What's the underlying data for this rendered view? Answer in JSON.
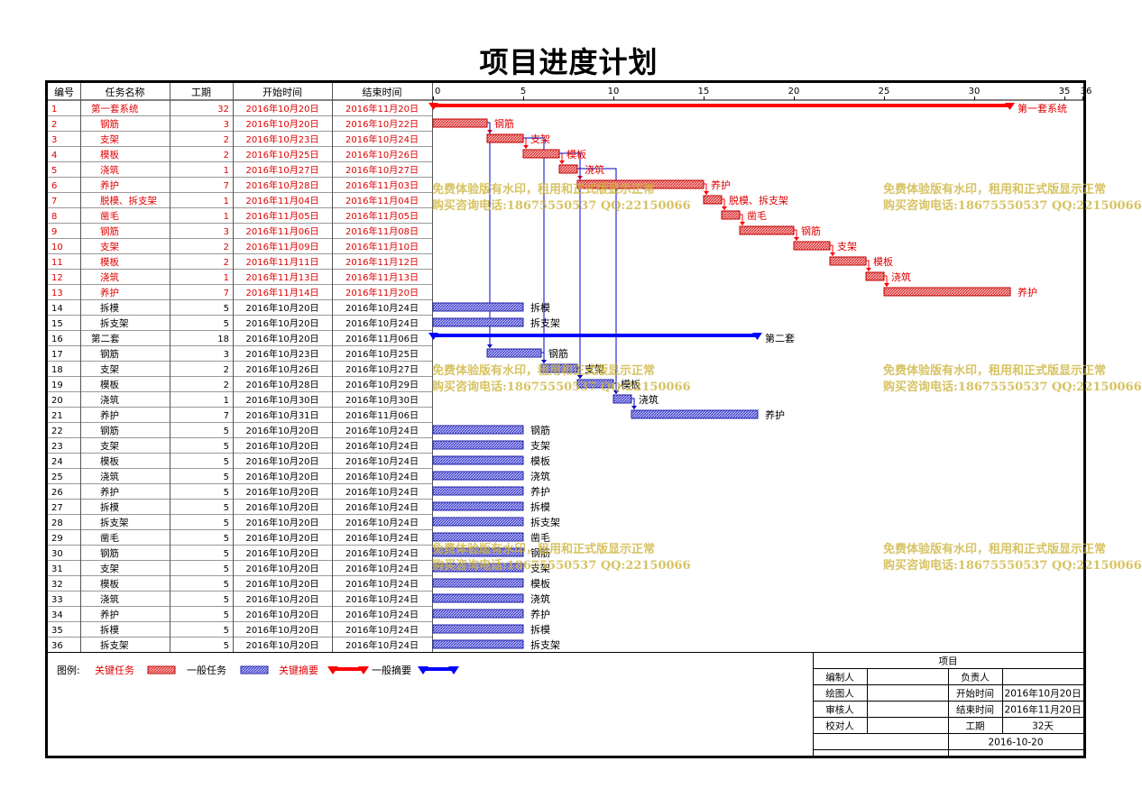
{
  "title": "项目进度计划",
  "headers": {
    "id": "编号",
    "name": "任务名称",
    "duration": "工期",
    "start": "开始时间",
    "end": "结束时间"
  },
  "colors": {
    "critical_text": "#e00000",
    "normal_text": "#000000",
    "critical_bar": "#e03030",
    "normal_bar": "#4a4ad0",
    "critical_summary": "#ff0000",
    "normal_summary": "#0000ff",
    "link": "#0000cc",
    "watermark": "#cdb43c"
  },
  "watermark": {
    "line1": "免费体验版有水印，租用和正式版显示正常",
    "line2": "购买咨询电话:18675550537 QQ:22150066"
  },
  "legend": {
    "label": "图例:",
    "critical_task": "关键任务",
    "normal_task": "一般任务",
    "critical_summary": "关键摘要",
    "normal_summary": "一般摘要"
  },
  "info_block": {
    "heading": "项目",
    "editor_label": "编制人",
    "owner_label": "负责人",
    "drawer_label": "绘图人",
    "start_label": "开始时间",
    "start_value": "2016年10月20日",
    "reviewer_label": "审核人",
    "end_label": "结束时间",
    "end_value": "2016年11月20日",
    "checker_label": "校对人",
    "duration_label": "工期",
    "duration_value": "32天",
    "date": "2016-10-20"
  },
  "chart_data": {
    "type": "gantt",
    "x_ticks": [
      "0",
      "5",
      "10",
      "15",
      "20",
      "25",
      "30",
      "35",
      "36"
    ],
    "x_range": [
      0,
      36
    ],
    "tasks": [
      {
        "id": "1",
        "name": "第一套系统",
        "duration": "32",
        "start": "2016年10月20日",
        "end": "2016年11月20日",
        "day": 0,
        "len": 32,
        "kind": "summary",
        "critical": true,
        "label": "第一套系统"
      },
      {
        "id": "2",
        "name": "钢筋",
        "duration": "3",
        "start": "2016年10月20日",
        "end": "2016年10月22日",
        "day": 0,
        "len": 3,
        "kind": "task",
        "critical": true,
        "label": "钢筋"
      },
      {
        "id": "3",
        "name": "支架",
        "duration": "2",
        "start": "2016年10月23日",
        "end": "2016年10月24日",
        "day": 3,
        "len": 2,
        "kind": "task",
        "critical": true,
        "label": "支架"
      },
      {
        "id": "4",
        "name": "模板",
        "duration": "2",
        "start": "2016年10月25日",
        "end": "2016年10月26日",
        "day": 5,
        "len": 2,
        "kind": "task",
        "critical": true,
        "label": "模板"
      },
      {
        "id": "5",
        "name": "浇筑",
        "duration": "1",
        "start": "2016年10月27日",
        "end": "2016年10月27日",
        "day": 7,
        "len": 1,
        "kind": "task",
        "critical": true,
        "label": "浇筑"
      },
      {
        "id": "6",
        "name": "养护",
        "duration": "7",
        "start": "2016年10月28日",
        "end": "2016年11月03日",
        "day": 8,
        "len": 7,
        "kind": "task",
        "critical": true,
        "label": "养护"
      },
      {
        "id": "7",
        "name": "脱模、拆支架",
        "duration": "1",
        "start": "2016年11月04日",
        "end": "2016年11月04日",
        "day": 15,
        "len": 1,
        "kind": "task",
        "critical": true,
        "label": "脱模、拆支架"
      },
      {
        "id": "8",
        "name": "凿毛",
        "duration": "1",
        "start": "2016年11月05日",
        "end": "2016年11月05日",
        "day": 16,
        "len": 1,
        "kind": "task",
        "critical": true,
        "label": "凿毛"
      },
      {
        "id": "9",
        "name": "钢筋",
        "duration": "3",
        "start": "2016年11月06日",
        "end": "2016年11月08日",
        "day": 17,
        "len": 3,
        "kind": "task",
        "critical": true,
        "label": "钢筋"
      },
      {
        "id": "10",
        "name": "支架",
        "duration": "2",
        "start": "2016年11月09日",
        "end": "2016年11月10日",
        "day": 20,
        "len": 2,
        "kind": "task",
        "critical": true,
        "label": "支架"
      },
      {
        "id": "11",
        "name": "模板",
        "duration": "2",
        "start": "2016年11月11日",
        "end": "2016年11月12日",
        "day": 22,
        "len": 2,
        "kind": "task",
        "critical": true,
        "label": "模板"
      },
      {
        "id": "12",
        "name": "浇筑",
        "duration": "1",
        "start": "2016年11月13日",
        "end": "2016年11月13日",
        "day": 24,
        "len": 1,
        "kind": "task",
        "critical": true,
        "label": "浇筑"
      },
      {
        "id": "13",
        "name": "养护",
        "duration": "7",
        "start": "2016年11月14日",
        "end": "2016年11月20日",
        "day": 25,
        "len": 7,
        "kind": "task",
        "critical": true,
        "label": "养护"
      },
      {
        "id": "14",
        "name": "拆模",
        "duration": "5",
        "start": "2016年10月20日",
        "end": "2016年10月24日",
        "day": 0,
        "len": 5,
        "kind": "task",
        "critical": false,
        "label": "拆模"
      },
      {
        "id": "15",
        "name": "拆支架",
        "duration": "5",
        "start": "2016年10月20日",
        "end": "2016年10月24日",
        "day": 0,
        "len": 5,
        "kind": "task",
        "critical": false,
        "label": "拆支架"
      },
      {
        "id": "16",
        "name": "第二套",
        "duration": "18",
        "start": "2016年10月20日",
        "end": "2016年11月06日",
        "day": 0,
        "len": 18,
        "kind": "summary",
        "critical": false,
        "label": "第二套"
      },
      {
        "id": "17",
        "name": "钢筋",
        "duration": "3",
        "start": "2016年10月23日",
        "end": "2016年10月25日",
        "day": 3,
        "len": 3,
        "kind": "task",
        "critical": false,
        "label": "钢筋"
      },
      {
        "id": "18",
        "name": "支架",
        "duration": "2",
        "start": "2016年10月26日",
        "end": "2016年10月27日",
        "day": 6,
        "len": 2,
        "kind": "task",
        "critical": false,
        "label": "支架"
      },
      {
        "id": "19",
        "name": "模板",
        "duration": "2",
        "start": "2016年10月28日",
        "end": "2016年10月29日",
        "day": 8,
        "len": 2,
        "kind": "task",
        "critical": false,
        "label": "模板"
      },
      {
        "id": "20",
        "name": "浇筑",
        "duration": "1",
        "start": "2016年10月30日",
        "end": "2016年10月30日",
        "day": 10,
        "len": 1,
        "kind": "task",
        "critical": false,
        "label": "浇筑"
      },
      {
        "id": "21",
        "name": "养护",
        "duration": "7",
        "start": "2016年10月31日",
        "end": "2016年11月06日",
        "day": 11,
        "len": 7,
        "kind": "task",
        "critical": false,
        "label": "养护"
      },
      {
        "id": "22",
        "name": "钢筋",
        "duration": "5",
        "start": "2016年10月20日",
        "end": "2016年10月24日",
        "day": 0,
        "len": 5,
        "kind": "task",
        "critical": false,
        "label": "钢筋"
      },
      {
        "id": "23",
        "name": "支架",
        "duration": "5",
        "start": "2016年10月20日",
        "end": "2016年10月24日",
        "day": 0,
        "len": 5,
        "kind": "task",
        "critical": false,
        "label": "支架"
      },
      {
        "id": "24",
        "name": "模板",
        "duration": "5",
        "start": "2016年10月20日",
        "end": "2016年10月24日",
        "day": 0,
        "len": 5,
        "kind": "task",
        "critical": false,
        "label": "模板"
      },
      {
        "id": "25",
        "name": "浇筑",
        "duration": "5",
        "start": "2016年10月20日",
        "end": "2016年10月24日",
        "day": 0,
        "len": 5,
        "kind": "task",
        "critical": false,
        "label": "浇筑"
      },
      {
        "id": "26",
        "name": "养护",
        "duration": "5",
        "start": "2016年10月20日",
        "end": "2016年10月24日",
        "day": 0,
        "len": 5,
        "kind": "task",
        "critical": false,
        "label": "养护"
      },
      {
        "id": "27",
        "name": "拆模",
        "duration": "5",
        "start": "2016年10月20日",
        "end": "2016年10月24日",
        "day": 0,
        "len": 5,
        "kind": "task",
        "critical": false,
        "label": "拆模"
      },
      {
        "id": "28",
        "name": "拆支架",
        "duration": "5",
        "start": "2016年10月20日",
        "end": "2016年10月24日",
        "day": 0,
        "len": 5,
        "kind": "task",
        "critical": false,
        "label": "拆支架"
      },
      {
        "id": "29",
        "name": "凿毛",
        "duration": "5",
        "start": "2016年10月20日",
        "end": "2016年10月24日",
        "day": 0,
        "len": 5,
        "kind": "task",
        "critical": false,
        "label": "凿毛"
      },
      {
        "id": "30",
        "name": "钢筋",
        "duration": "5",
        "start": "2016年10月20日",
        "end": "2016年10月24日",
        "day": 0,
        "len": 5,
        "kind": "task",
        "critical": false,
        "label": "钢筋"
      },
      {
        "id": "31",
        "name": "支架",
        "duration": "5",
        "start": "2016年10月20日",
        "end": "2016年10月24日",
        "day": 0,
        "len": 5,
        "kind": "task",
        "critical": false,
        "label": "支架"
      },
      {
        "id": "32",
        "name": "模板",
        "duration": "5",
        "start": "2016年10月20日",
        "end": "2016年10月24日",
        "day": 0,
        "len": 5,
        "kind": "task",
        "critical": false,
        "label": "模板"
      },
      {
        "id": "33",
        "name": "浇筑",
        "duration": "5",
        "start": "2016年10月20日",
        "end": "2016年10月24日",
        "day": 0,
        "len": 5,
        "kind": "task",
        "critical": false,
        "label": "浇筑"
      },
      {
        "id": "34",
        "name": "养护",
        "duration": "5",
        "start": "2016年10月20日",
        "end": "2016年10月24日",
        "day": 0,
        "len": 5,
        "kind": "task",
        "critical": false,
        "label": "养护"
      },
      {
        "id": "35",
        "name": "拆模",
        "duration": "5",
        "start": "2016年10月20日",
        "end": "2016年10月24日",
        "day": 0,
        "len": 5,
        "kind": "task",
        "critical": false,
        "label": "拆模"
      },
      {
        "id": "36",
        "name": "拆支架",
        "duration": "5",
        "start": "2016年10月20日",
        "end": "2016年10月24日",
        "day": 0,
        "len": 5,
        "kind": "task",
        "critical": false,
        "label": "拆支架"
      }
    ],
    "links": [
      {
        "from": "2",
        "to": "3"
      },
      {
        "from": "3",
        "to": "4"
      },
      {
        "from": "4",
        "to": "5"
      },
      {
        "from": "5",
        "to": "6"
      },
      {
        "from": "6",
        "to": "7"
      },
      {
        "from": "7",
        "to": "8"
      },
      {
        "from": "8",
        "to": "9"
      },
      {
        "from": "9",
        "to": "10"
      },
      {
        "from": "10",
        "to": "11"
      },
      {
        "from": "11",
        "to": "12"
      },
      {
        "from": "12",
        "to": "13"
      },
      {
        "from": "2",
        "to": "17"
      },
      {
        "from": "3",
        "to": "18"
      },
      {
        "from": "4",
        "to": "19"
      },
      {
        "from": "5",
        "to": "20"
      },
      {
        "from": "17",
        "to": "18"
      },
      {
        "from": "18",
        "to": "19"
      },
      {
        "from": "19",
        "to": "20"
      },
      {
        "from": "20",
        "to": "21"
      }
    ]
  }
}
